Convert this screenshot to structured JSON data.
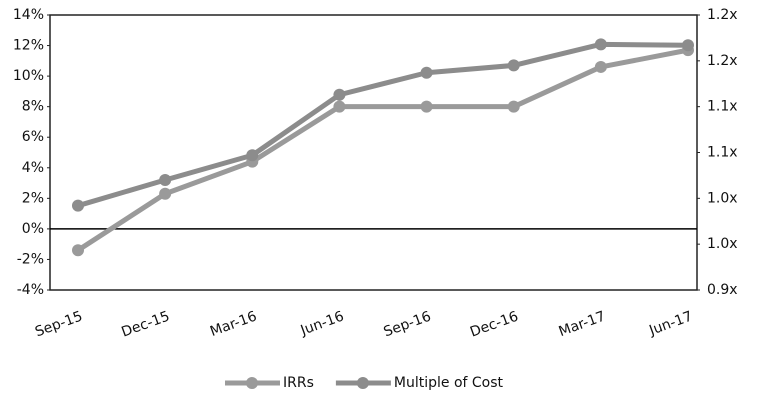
{
  "chart_data": {
    "type": "line",
    "categories": [
      "Sep-15",
      "Dec-15",
      "Mar-16",
      "Jun-16",
      "Sep-16",
      "Dec-16",
      "Mar-17",
      "Jun-17"
    ],
    "series": [
      {
        "name": "IRRs",
        "color": "#9a9a9a",
        "values": [
          -1.4,
          2.3,
          4.4,
          8.0,
          8.0,
          8.0,
          10.6,
          11.7
        ]
      },
      {
        "name": "Multiple of Cost",
        "color": "#8c8c8c",
        "axis": "y2",
        "values": [
          0.992,
          1.02,
          1.047,
          1.113,
          1.137,
          1.145,
          1.168,
          1.167
        ]
      }
    ],
    "ylim": [
      -4,
      14
    ],
    "yticks": [
      {
        "value": -4,
        "label": "-4%"
      },
      {
        "value": -2,
        "label": "-2%"
      },
      {
        "value": 0,
        "label": "0%"
      },
      {
        "value": 2,
        "label": "2%"
      },
      {
        "value": 4,
        "label": "4%"
      },
      {
        "value": 6,
        "label": "6%"
      },
      {
        "value": 8,
        "label": "8%"
      },
      {
        "value": 10,
        "label": "10%"
      },
      {
        "value": 12,
        "label": "12%"
      },
      {
        "value": 14,
        "label": "14%"
      }
    ],
    "y2lim": [
      0.9,
      1.2
    ],
    "y2ticks": [
      {
        "value": 0.9,
        "label": "0.9x"
      },
      {
        "value": 0.95,
        "label": "1.0x"
      },
      {
        "value": 1.0,
        "label": "1.0x"
      },
      {
        "value": 1.05,
        "label": "1.1x"
      },
      {
        "value": 1.1,
        "label": "1.1x"
      },
      {
        "value": 1.15,
        "label": "1.2x"
      },
      {
        "value": 1.2,
        "label": "1.2x"
      }
    ],
    "legend": "bottom"
  }
}
